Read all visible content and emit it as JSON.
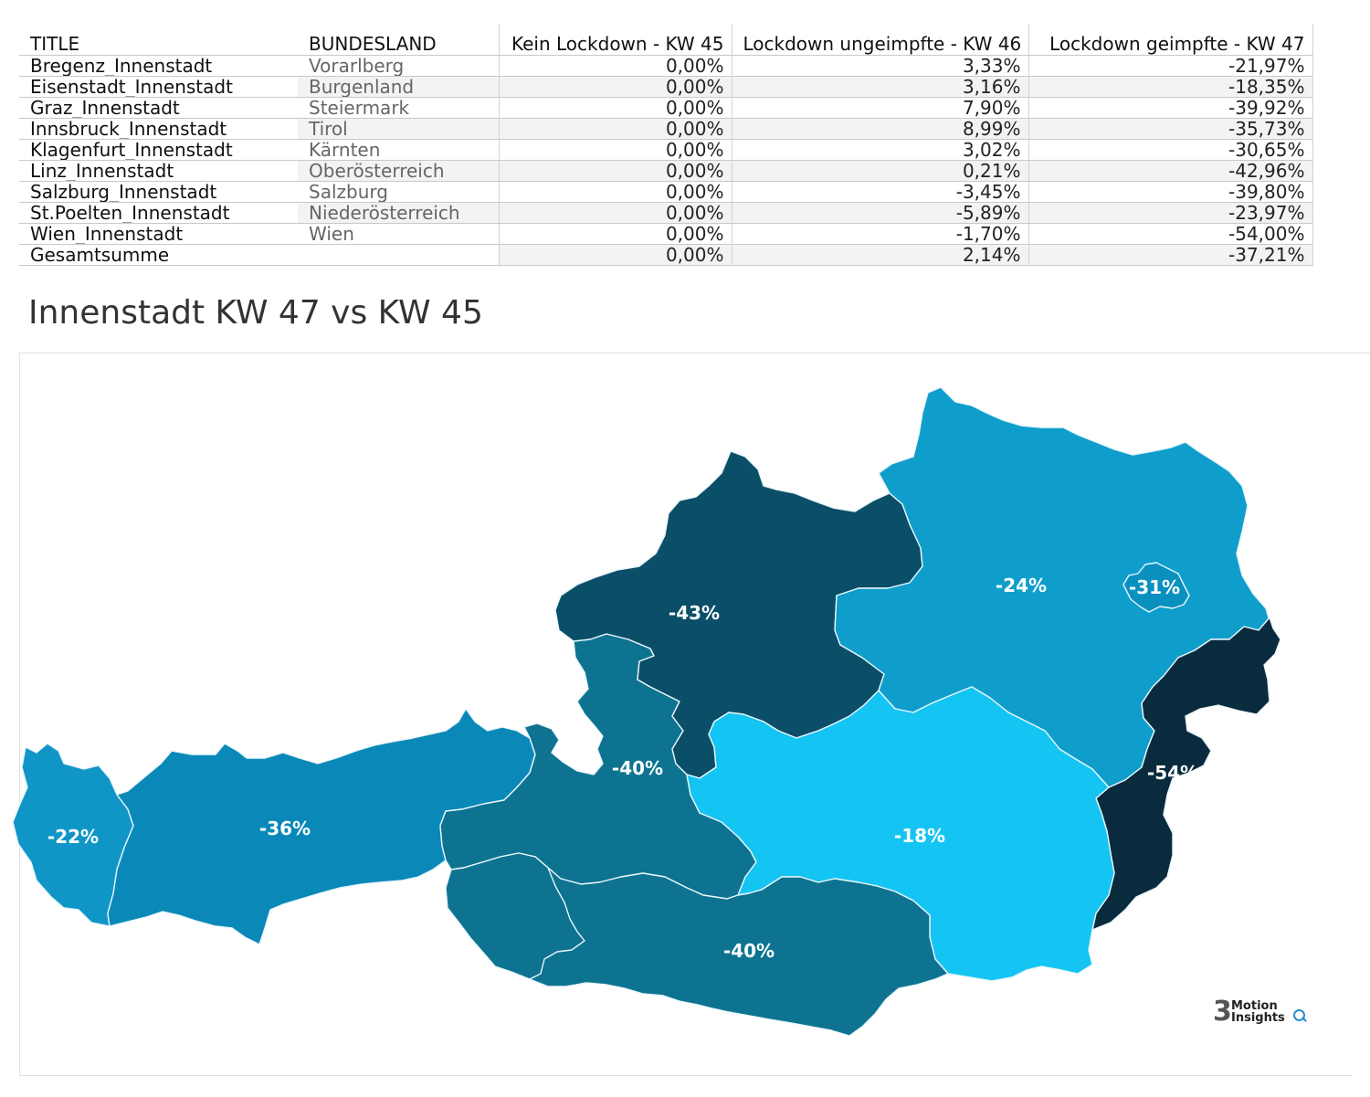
{
  "table": {
    "headers": {
      "title": "TITLE",
      "bundesland": "BUNDESLAND",
      "kw45": "Kein Lockdown - KW 45",
      "kw46": "Lockdown ungeimpfte - KW 46",
      "kw47": "Lockdown geimpfte - KW 47"
    },
    "rows": [
      {
        "title": "Bregenz_Innenstadt",
        "bundesland": "Vorarlberg",
        "kw45": "0,00%",
        "kw46": "3,33%",
        "kw47": "-21,97%"
      },
      {
        "title": "Eisenstadt_Innenstadt",
        "bundesland": "Burgenland",
        "kw45": "0,00%",
        "kw46": "3,16%",
        "kw47": "-18,35%"
      },
      {
        "title": "Graz_Innenstadt",
        "bundesland": "Steiermark",
        "kw45": "0,00%",
        "kw46": "7,90%",
        "kw47": "-39,92%"
      },
      {
        "title": "Innsbruck_Innenstadt",
        "bundesland": "Tirol",
        "kw45": "0,00%",
        "kw46": "8,99%",
        "kw47": "-35,73%"
      },
      {
        "title": "Klagenfurt_Innenstadt",
        "bundesland": "Kärnten",
        "kw45": "0,00%",
        "kw46": "3,02%",
        "kw47": "-30,65%"
      },
      {
        "title": "Linz_Innenstadt",
        "bundesland": "Oberösterreich",
        "kw45": "0,00%",
        "kw46": "0,21%",
        "kw47": "-42,96%"
      },
      {
        "title": "Salzburg_Innenstadt",
        "bundesland": "Salzburg",
        "kw45": "0,00%",
        "kw46": "-3,45%",
        "kw47": "-39,80%"
      },
      {
        "title": "St.Poelten_Innenstadt",
        "bundesland": "Niederösterreich",
        "kw45": "0,00%",
        "kw46": "-5,89%",
        "kw47": "-23,97%"
      },
      {
        "title": "Wien_Innenstadt",
        "bundesland": "Wien",
        "kw45": "0,00%",
        "kw46": "-1,70%",
        "kw47": "-54,00%"
      }
    ],
    "total": {
      "title": "Gesamtsumme",
      "bundesland": "",
      "kw45": "0,00%",
      "kw46": "2,14%",
      "kw47": "-37,21%"
    }
  },
  "map": {
    "title": "Innenstadt KW 47 vs KW 45",
    "regions": [
      {
        "name": "Vorarlberg",
        "label": "-22%",
        "color": "#0f96c6"
      },
      {
        "name": "Tirol",
        "label": "-36%",
        "color": "#0a89b8"
      },
      {
        "name": "Salzburg",
        "label": "-40%",
        "color": "#0d7391"
      },
      {
        "name": "Oberösterreich",
        "label": "-43%",
        "color": "#0b4e68"
      },
      {
        "name": "Niederösterreich",
        "label": "-24%",
        "color": "#0f9ecc"
      },
      {
        "name": "Wien",
        "label": "-54%",
        "color": "#0a2b3d"
      },
      {
        "name": "Burgenland",
        "label": "-18%",
        "color": "#14c4f3"
      },
      {
        "name": "Steiermark",
        "label": "-40%",
        "color": "#0d7391"
      },
      {
        "name": "Kärnten",
        "label": "-31%",
        "color": "#0a90bf"
      }
    ]
  },
  "logo": {
    "digit": "3",
    "line1": "Motion",
    "line2": "Insights"
  }
}
